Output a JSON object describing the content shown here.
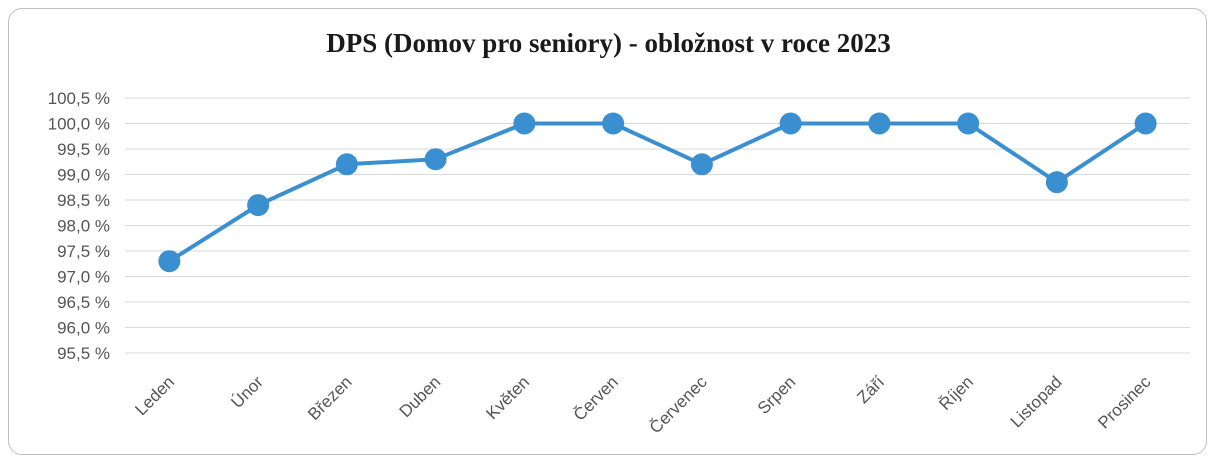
{
  "chart_data": {
    "type": "line",
    "title": "DPS (Domov pro seniory) - obložnost v roce 2023",
    "categories": [
      "Leden",
      "Únor",
      "Březen",
      "Duben",
      "Květen",
      "Červen",
      "Červenec",
      "Srpen",
      "Září",
      "Říjen",
      "Listopad",
      "Prosinec"
    ],
    "series": [
      {
        "values": [
          97.3,
          98.4,
          99.2,
          99.3,
          100.0,
          100.0,
          99.2,
          100.0,
          100.0,
          100.0,
          98.85,
          100.0
        ]
      }
    ],
    "yticks": [
      "100,5 %",
      "100,0 %",
      "99,5 %",
      "99,0 %",
      "98,5 %",
      "98,0 %",
      "97,5 %",
      "97,0 %",
      "96,5 %",
      "96,0 %",
      "95,5 %"
    ],
    "ylim": [
      95.5,
      100.5
    ],
    "grid": true,
    "legend": "none",
    "color": "#3a8fd0"
  }
}
